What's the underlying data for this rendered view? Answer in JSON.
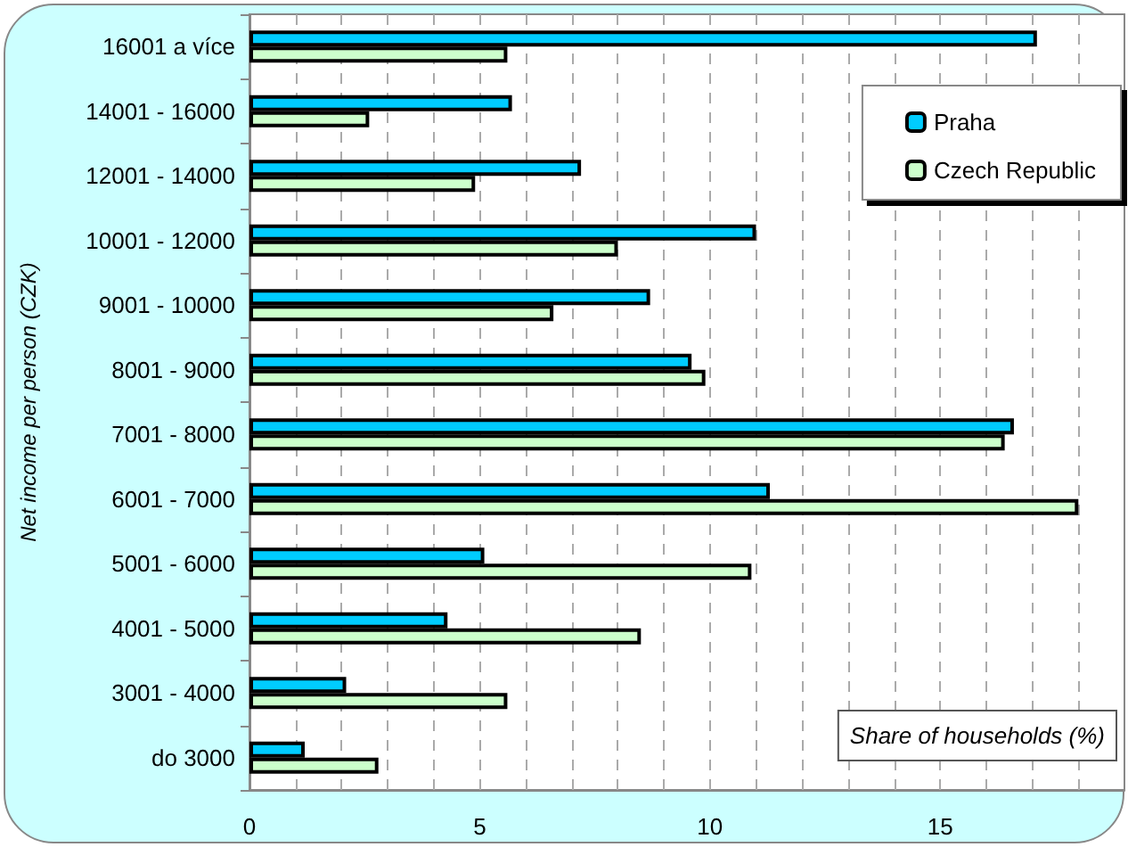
{
  "chart_data": {
    "type": "bar",
    "orientation": "horizontal",
    "xlabel": "Share of households (%)",
    "ylabel": "Net income per person (CZK)",
    "categories": [
      "16001 a více",
      "14001 - 16000",
      "12001 - 14000",
      "10001 - 12000",
      "9001 - 10000",
      "8001 - 9000",
      "7001 - 8000",
      "6001 - 7000",
      "5001 - 6000",
      "4001 - 5000",
      "3001 - 4000",
      "do 3000"
    ],
    "series": [
      {
        "name": "Praha",
        "color": "#00ccff",
        "values": [
          17.1,
          5.7,
          7.2,
          11.0,
          8.7,
          9.6,
          16.6,
          11.3,
          5.1,
          4.3,
          2.1,
          1.2
        ]
      },
      {
        "name": "Czech Republic",
        "color": "#ccffcc",
        "values": [
          5.6,
          2.6,
          4.9,
          8.0,
          6.6,
          9.9,
          16.4,
          18.0,
          10.9,
          8.5,
          5.6,
          2.8
        ]
      }
    ],
    "xlim": [
      0,
      19
    ],
    "xticks": [
      0,
      {
        "value": 1,
        "label": null
      },
      {
        "value": 2,
        "label": null
      },
      {
        "value": 3,
        "label": null
      },
      {
        "value": 4,
        "label": null
      },
      5,
      {
        "value": 6,
        "label": null
      },
      {
        "value": 7,
        "label": null
      },
      {
        "value": 8,
        "label": null
      },
      {
        "value": 9,
        "label": null
      },
      10,
      {
        "value": 11,
        "label": null
      },
      {
        "value": 12,
        "label": null
      },
      {
        "value": 13,
        "label": null
      },
      {
        "value": 14,
        "label": null
      },
      15,
      {
        "value": 16,
        "label": null
      },
      {
        "value": 17,
        "label": null
      },
      {
        "value": 18,
        "label": null
      }
    ],
    "grid": "x",
    "legend": "top right"
  }
}
